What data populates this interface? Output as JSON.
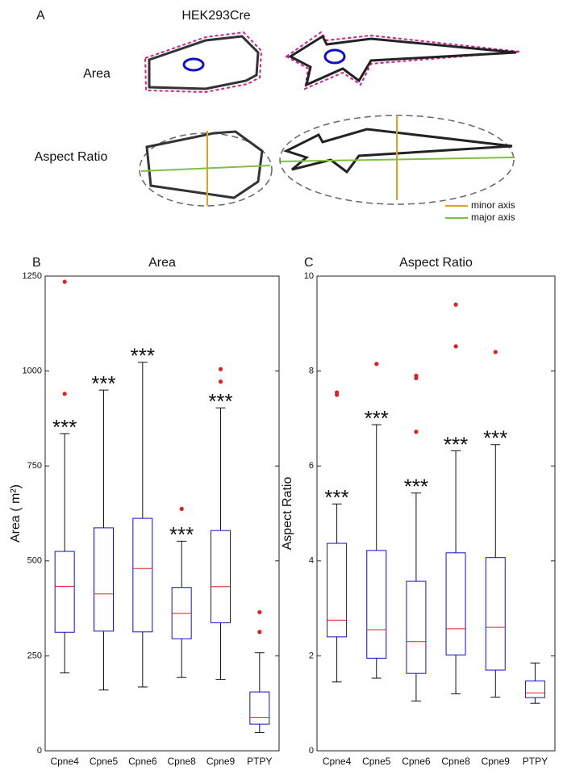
{
  "panel_a": {
    "label": "A",
    "title": "HEK293Cre",
    "row_labels": [
      "Area",
      "Aspect Ratio"
    ],
    "legend": [
      "minor axis",
      "major axis"
    ]
  },
  "chart_data": [
    {
      "type": "box",
      "panel_label": "B",
      "title": "Area",
      "ylabel": "Area (  m²)",
      "categories": [
        "Cpne4",
        "Cpne5",
        "Cpne6",
        "Cpne8",
        "Cpne9",
        "PTPY"
      ],
      "boxes": [
        {
          "min": 205,
          "q1": 312,
          "median": 433,
          "q3": 525,
          "max": 835,
          "outliers": [
            940,
            1235
          ]
        },
        {
          "min": 160,
          "q1": 315,
          "median": 413,
          "q3": 587,
          "max": 950,
          "outliers": []
        },
        {
          "min": 168,
          "q1": 313,
          "median": 480,
          "q3": 612,
          "max": 1023,
          "outliers": []
        },
        {
          "min": 193,
          "q1": 295,
          "median": 362,
          "q3": 430,
          "max": 552,
          "outliers": [
            637
          ]
        },
        {
          "min": 188,
          "q1": 337,
          "median": 432,
          "q3": 580,
          "max": 903,
          "outliers": [
            972,
            1005
          ]
        },
        {
          "min": 48,
          "q1": 70,
          "median": 88,
          "q3": 155,
          "max": 258,
          "outliers": [
            313,
            365
          ]
        }
      ],
      "stars": [
        "***",
        "***",
        "***",
        "***",
        "***",
        null
      ],
      "ylim": [
        0,
        1250
      ],
      "yticks": [
        0,
        250,
        500,
        750,
        1000,
        1250
      ],
      "box_color": "#1010cc",
      "median_color": "#dd2020",
      "outlier_color": "#e02020"
    },
    {
      "type": "box",
      "panel_label": "C",
      "title": "Aspect Ratio",
      "ylabel": "Aspect Ratio",
      "categories": [
        "Cpne4",
        "Cpne5",
        "Cpne6",
        "Cpne8",
        "Cpne9",
        "PTPY"
      ],
      "boxes": [
        {
          "min": 1.45,
          "q1": 2.4,
          "median": 2.75,
          "q3": 4.37,
          "max": 5.2,
          "outliers": [
            7.5,
            7.55
          ]
        },
        {
          "min": 1.53,
          "q1": 1.95,
          "median": 2.55,
          "q3": 4.22,
          "max": 6.87,
          "outliers": [
            8.15
          ]
        },
        {
          "min": 1.05,
          "q1": 1.63,
          "median": 2.3,
          "q3": 3.57,
          "max": 5.43,
          "outliers": [
            6.72,
            7.85,
            7.9
          ]
        },
        {
          "min": 1.2,
          "q1": 2.02,
          "median": 2.57,
          "q3": 4.17,
          "max": 6.32,
          "outliers": [
            8.52,
            9.4
          ]
        },
        {
          "min": 1.13,
          "q1": 1.7,
          "median": 2.6,
          "q3": 4.07,
          "max": 6.45,
          "outliers": [
            8.4
          ]
        },
        {
          "min": 1.0,
          "q1": 1.12,
          "median": 1.22,
          "q3": 1.47,
          "max": 1.85,
          "outliers": []
        }
      ],
      "stars": [
        "***",
        "***",
        "***",
        "***",
        "***",
        null
      ],
      "ylim": [
        0,
        10
      ],
      "yticks": [
        0,
        2,
        4,
        6,
        8,
        10
      ],
      "box_color": "#1010cc",
      "median_color": "#dd2020",
      "outlier_color": "#e02020"
    }
  ]
}
